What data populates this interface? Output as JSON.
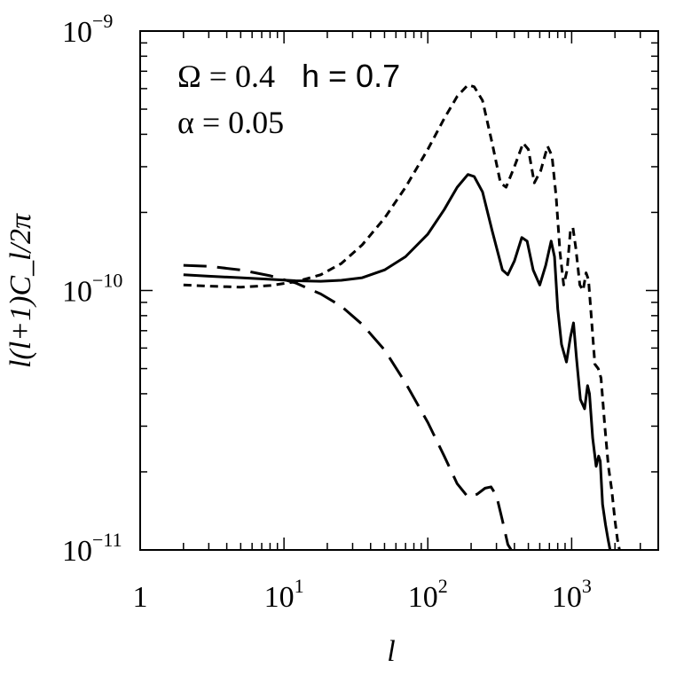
{
  "chart_data": {
    "type": "line",
    "xscale": "log",
    "yscale": "log",
    "xlim": [
      1,
      4000
    ],
    "ylim": [
      1e-11,
      1e-09
    ],
    "xlabel": "l",
    "ylabel": "l(l+1)C_l/2π",
    "x_ticks": [
      {
        "value": 1,
        "base": "1",
        "exp": ""
      },
      {
        "value": 10,
        "base": "10",
        "exp": "1"
      },
      {
        "value": 100,
        "base": "10",
        "exp": "2"
      },
      {
        "value": 1000,
        "base": "10",
        "exp": "3"
      }
    ],
    "y_ticks": [
      {
        "value": 1e-11,
        "base": "10",
        "exp": "−11"
      },
      {
        "value": 1e-10,
        "base": "10",
        "exp": "−10"
      },
      {
        "value": 1e-09,
        "base": "10",
        "exp": "−9"
      }
    ],
    "annotations": {
      "line1_omega": "Ω = 0.4",
      "line1_h": "h = 0.7",
      "line2": "α = 0.05"
    },
    "series": [
      {
        "style": "solid",
        "points": [
          [
            2,
            1.15e-10
          ],
          [
            3,
            1.135e-10
          ],
          [
            5,
            1.12e-10
          ],
          [
            8,
            1.105e-10
          ],
          [
            12,
            1.09e-10
          ],
          [
            18,
            1.085e-10
          ],
          [
            25,
            1.095e-10
          ],
          [
            35,
            1.12e-10
          ],
          [
            50,
            1.2e-10
          ],
          [
            70,
            1.35e-10
          ],
          [
            100,
            1.65e-10
          ],
          [
            130,
            2.05e-10
          ],
          [
            160,
            2.5e-10
          ],
          [
            190,
            2.8e-10
          ],
          [
            210,
            2.75e-10
          ],
          [
            240,
            2.4e-10
          ],
          [
            280,
            1.7e-10
          ],
          [
            330,
            1.2e-10
          ],
          [
            360,
            1.15e-10
          ],
          [
            400,
            1.3e-10
          ],
          [
            450,
            1.6e-10
          ],
          [
            490,
            1.55e-10
          ],
          [
            540,
            1.2e-10
          ],
          [
            600,
            1.05e-10
          ],
          [
            660,
            1.25e-10
          ],
          [
            720,
            1.55e-10
          ],
          [
            760,
            1.35e-10
          ],
          [
            800,
            8.5e-11
          ],
          [
            850,
            6.2e-11
          ],
          [
            920,
            5.3e-11
          ],
          [
            980,
            6.6e-11
          ],
          [
            1030,
            7.5e-11
          ],
          [
            1080,
            5.5e-11
          ],
          [
            1150,
            3.8e-11
          ],
          [
            1230,
            3.5e-11
          ],
          [
            1290,
            4.3e-11
          ],
          [
            1330,
            4e-11
          ],
          [
            1400,
            2.7e-11
          ],
          [
            1480,
            2.1e-11
          ],
          [
            1540,
            2.3e-11
          ],
          [
            1580,
            2.2e-11
          ],
          [
            1640,
            1.5e-11
          ],
          [
            1720,
            1.25e-11
          ],
          [
            1790,
            1.1e-11
          ],
          [
            1850,
            1e-11
          ]
        ]
      },
      {
        "style": "dashed",
        "points": [
          [
            2,
            1.05e-10
          ],
          [
            3,
            1.04e-10
          ],
          [
            5,
            1.03e-10
          ],
          [
            8,
            1.045e-10
          ],
          [
            12,
            1.08e-10
          ],
          [
            18,
            1.15e-10
          ],
          [
            25,
            1.27e-10
          ],
          [
            35,
            1.5e-10
          ],
          [
            50,
            1.9e-10
          ],
          [
            70,
            2.5e-10
          ],
          [
            100,
            3.5e-10
          ],
          [
            130,
            4.6e-10
          ],
          [
            160,
            5.6e-10
          ],
          [
            190,
            6.2e-10
          ],
          [
            210,
            6.1e-10
          ],
          [
            240,
            5.4e-10
          ],
          [
            280,
            3.7e-10
          ],
          [
            320,
            2.6e-10
          ],
          [
            350,
            2.5e-10
          ],
          [
            400,
            3e-10
          ],
          [
            460,
            3.7e-10
          ],
          [
            500,
            3.5e-10
          ],
          [
            550,
            2.6e-10
          ],
          [
            610,
            2.9e-10
          ],
          [
            680,
            3.6e-10
          ],
          [
            730,
            3.3e-10
          ],
          [
            780,
            2.3e-10
          ],
          [
            830,
            1.4e-10
          ],
          [
            880,
            1.05e-10
          ],
          [
            930,
            1.2e-10
          ],
          [
            980,
            1.7e-10
          ],
          [
            1020,
            1.75e-10
          ],
          [
            1070,
            1.45e-10
          ],
          [
            1140,
            1.05e-10
          ],
          [
            1200,
            1e-10
          ],
          [
            1260,
            1.17e-10
          ],
          [
            1310,
            1.1e-10
          ],
          [
            1380,
            7.5e-11
          ],
          [
            1450,
            5.2e-11
          ],
          [
            1530,
            5e-11
          ],
          [
            1600,
            4.6e-11
          ],
          [
            1700,
            3e-11
          ],
          [
            1800,
            2.1e-11
          ],
          [
            1900,
            1.7e-11
          ],
          [
            2000,
            1.3e-11
          ],
          [
            2080,
            1.1e-11
          ],
          [
            2150,
            1e-11
          ]
        ]
      },
      {
        "style": "long-dashed",
        "points": [
          [
            2,
            1.25e-10
          ],
          [
            3,
            1.24e-10
          ],
          [
            5,
            1.2e-10
          ],
          [
            8,
            1.14e-10
          ],
          [
            12,
            1.07e-10
          ],
          [
            18,
            9.7e-11
          ],
          [
            25,
            8.7e-11
          ],
          [
            35,
            7.4e-11
          ],
          [
            50,
            5.9e-11
          ],
          [
            70,
            4.4e-11
          ],
          [
            100,
            3.1e-11
          ],
          [
            130,
            2.3e-11
          ],
          [
            160,
            1.8e-11
          ],
          [
            190,
            1.6e-11
          ],
          [
            220,
            1.64e-11
          ],
          [
            250,
            1.73e-11
          ],
          [
            275,
            1.75e-11
          ],
          [
            300,
            1.62e-11
          ],
          [
            330,
            1.3e-11
          ],
          [
            360,
            1.05e-11
          ],
          [
            380,
            1e-11
          ]
        ]
      }
    ]
  }
}
